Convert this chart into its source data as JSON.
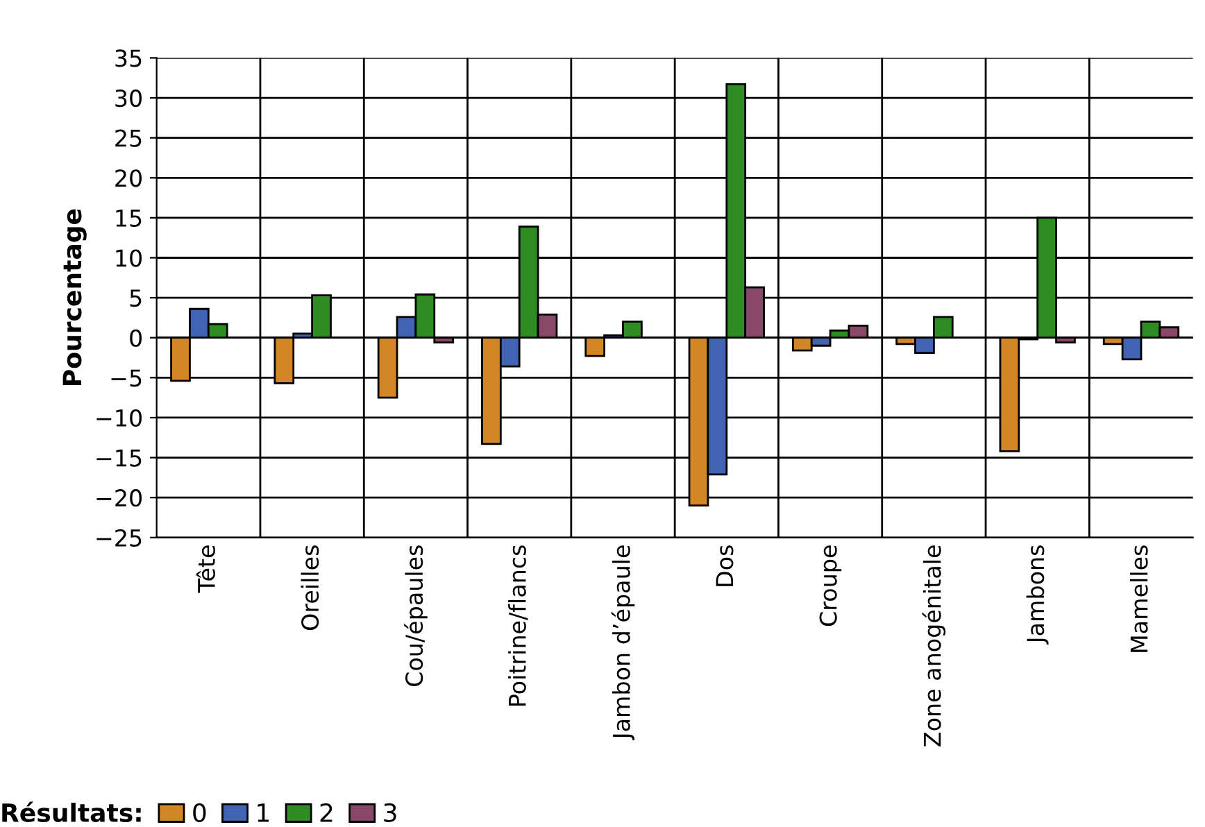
{
  "chart_data": {
    "type": "bar",
    "ylabel": "Pourcentage",
    "legend_title": "Résultats:",
    "categories": [
      "Tête",
      "Oreilles",
      "Cou/épaules",
      "Poitrine/flancs",
      "Jambon d’épaule",
      "Dos",
      "Croupe",
      "Zone anogénitale",
      "Jambons",
      "Mamelles"
    ],
    "series": [
      {
        "name": "0",
        "color": "#d38625",
        "values": [
          -5.4,
          -5.7,
          -7.5,
          -13.3,
          -2.3,
          -21.0,
          -1.6,
          -0.8,
          -14.2,
          -0.8
        ]
      },
      {
        "name": "1",
        "color": "#4262b4",
        "values": [
          3.6,
          0.5,
          2.6,
          -3.6,
          0.3,
          -17.1,
          -1.0,
          -1.9,
          -0.2,
          -2.7
        ]
      },
      {
        "name": "2",
        "color": "#2f8c25",
        "values": [
          1.7,
          5.3,
          5.4,
          13.9,
          2.0,
          31.7,
          0.9,
          2.6,
          15.0,
          2.0
        ]
      },
      {
        "name": "3",
        "color": "#8a4868",
        "values": [
          null,
          null,
          -0.6,
          2.9,
          null,
          6.3,
          1.5,
          null,
          -0.6,
          1.3
        ]
      }
    ],
    "ylim": [
      -25,
      35
    ],
    "yticks": [
      -25,
      -20,
      -15,
      -10,
      -5,
      0,
      5,
      10,
      15,
      20,
      25,
      30,
      35
    ],
    "grid": true,
    "legend": "bottom"
  }
}
